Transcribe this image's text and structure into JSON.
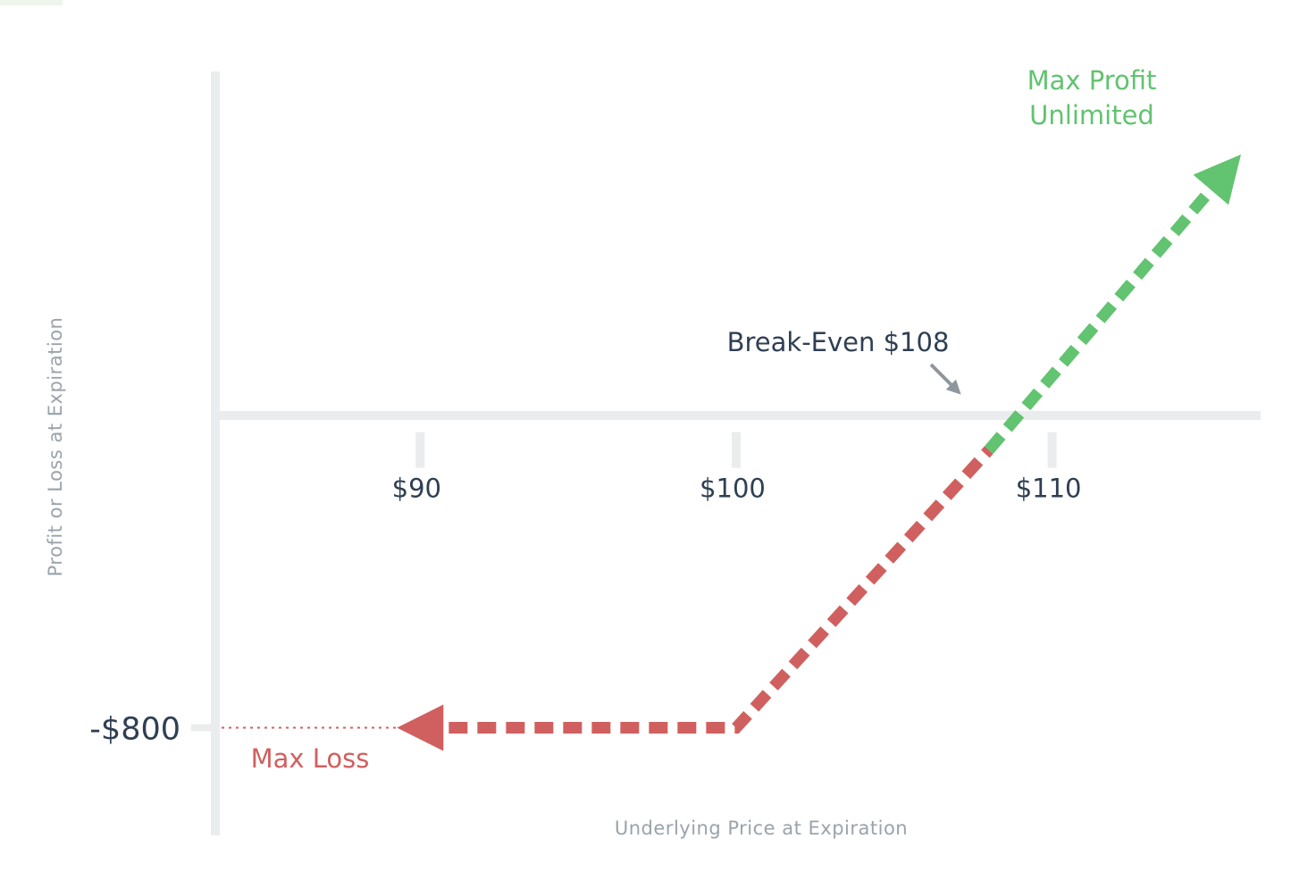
{
  "chart_data": {
    "type": "line",
    "xlabel": "Underlying Price at Expiration",
    "ylabel": "Profit or Loss at Expiration",
    "x_ticks": [
      {
        "value": 90,
        "label": "$90"
      },
      {
        "value": 100,
        "label": "$100"
      },
      {
        "value": 110,
        "label": "$110"
      }
    ],
    "y_ticks": [
      {
        "value": -800,
        "label": "-$800"
      }
    ],
    "xlim": [
      83.6,
      116.6
    ],
    "ylim": [
      -1110,
      1090
    ],
    "grid": false,
    "series": [
      {
        "name": "",
        "color": "#d0605f",
        "style": "dashed",
        "points": [
          {
            "x": 90,
            "y": -800
          },
          {
            "x": 100,
            "y": -800
          },
          {
            "x": 108,
            "y": 0
          }
        ],
        "arrow": "start"
      },
      {
        "name": "",
        "color": "#62c370",
        "style": "dashed",
        "points": [
          {
            "x": 108,
            "y": 0
          },
          {
            "x": 115.5,
            "y": 800
          }
        ],
        "arrow": "end"
      }
    ],
    "annotations": {
      "break_even": {
        "label": "Break-Even $108",
        "x": 108,
        "y": 0
      },
      "max_profit": {
        "line1": "Max Profit",
        "line2": "Unlimited"
      },
      "max_loss": {
        "label": "Max Loss",
        "y": -800
      }
    },
    "colors": {
      "axis": "#eaecee",
      "loss": "#d0605f",
      "profit": "#62c370",
      "text": "#2f3f52",
      "muted": "#9aa3ab",
      "pointer": "#8f979e"
    }
  }
}
